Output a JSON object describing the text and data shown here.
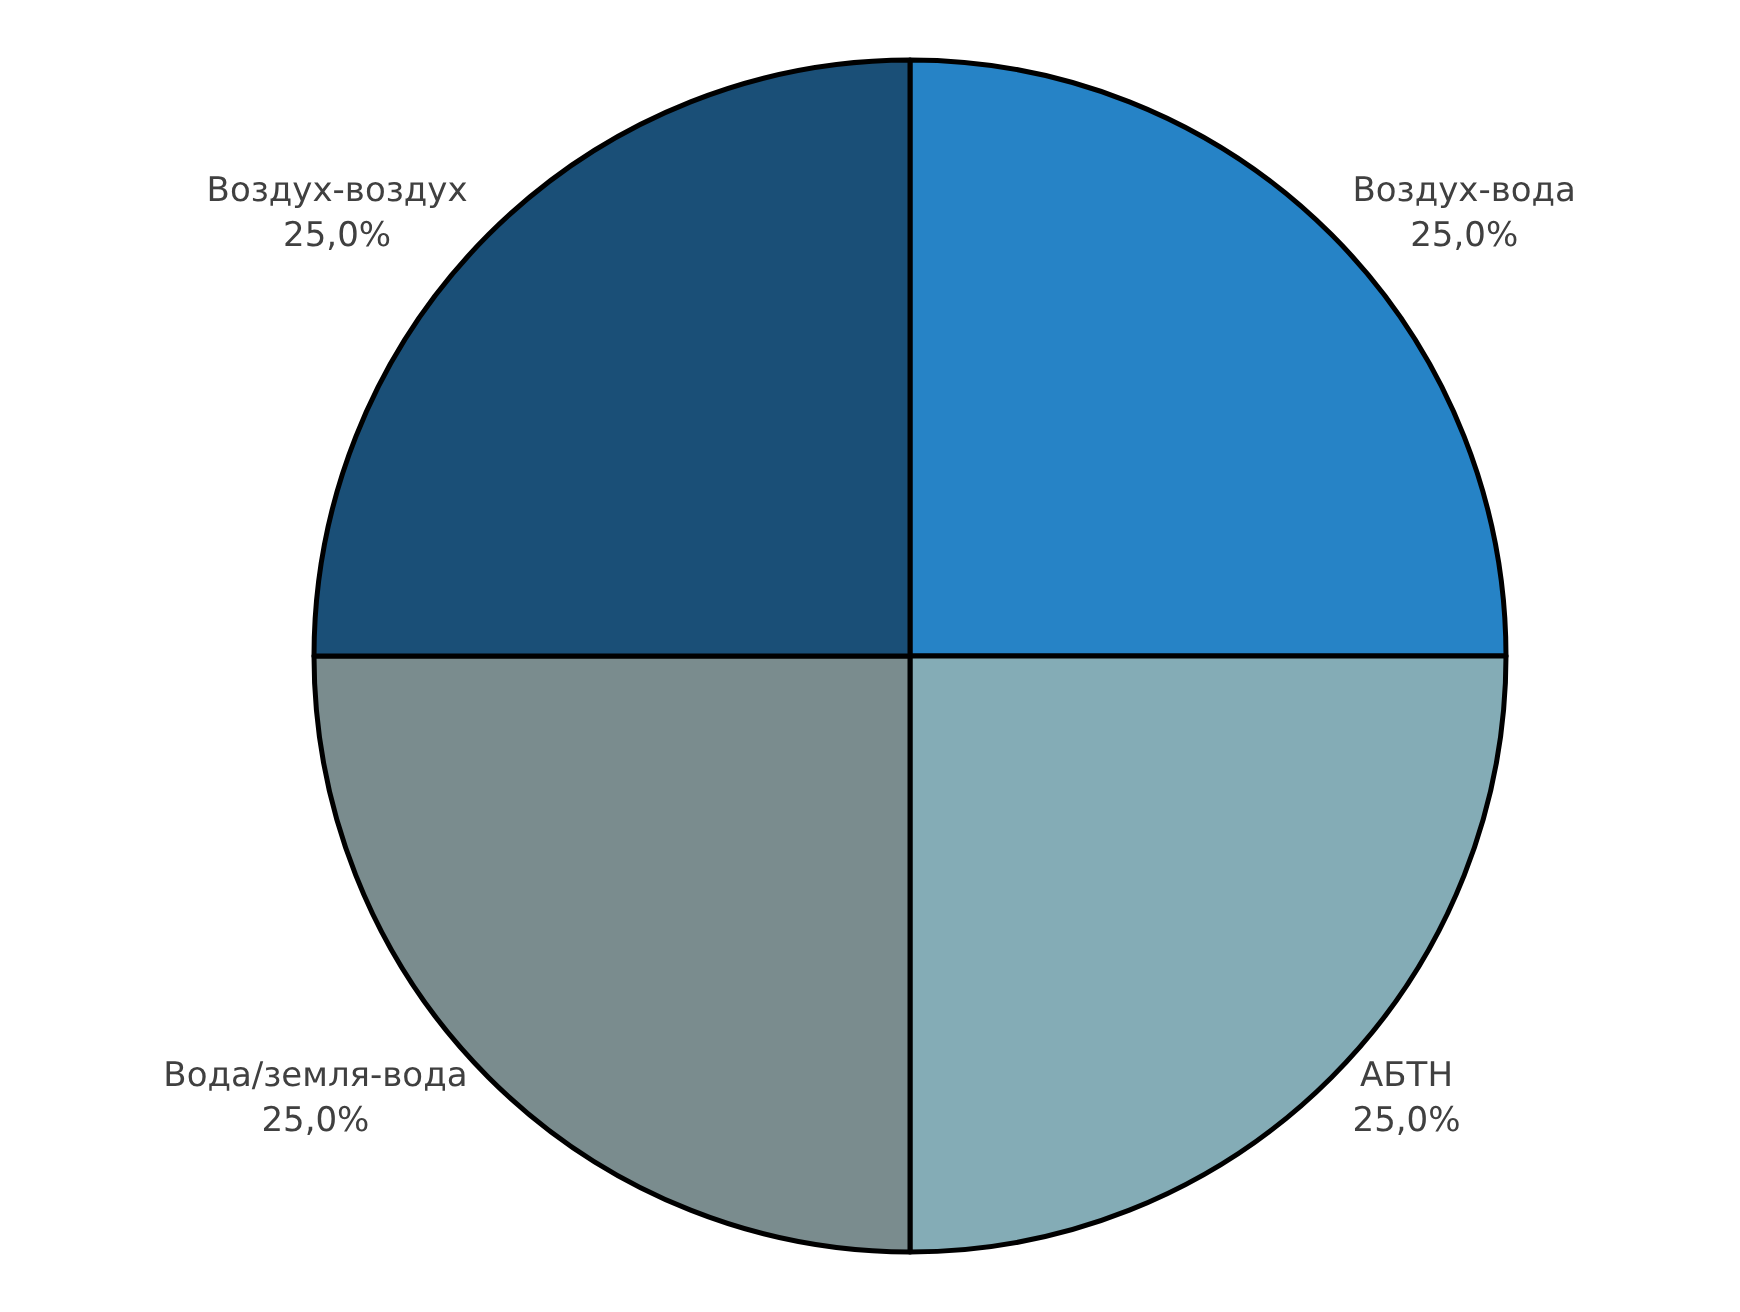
{
  "chart_data": {
    "type": "pie",
    "categories": [
      "Воздух-вода",
      "АБТН",
      "Вода/земля-вода",
      "Воздух-воздух"
    ],
    "values": [
      25,
      25,
      25,
      25
    ],
    "value_labels": [
      "25,0%",
      "25,0%",
      "25,0%",
      "25,0%"
    ],
    "colors": [
      "#2683c6",
      "#84acb6",
      "#7a8c8e",
      "#1a4f77"
    ],
    "legend": false
  }
}
